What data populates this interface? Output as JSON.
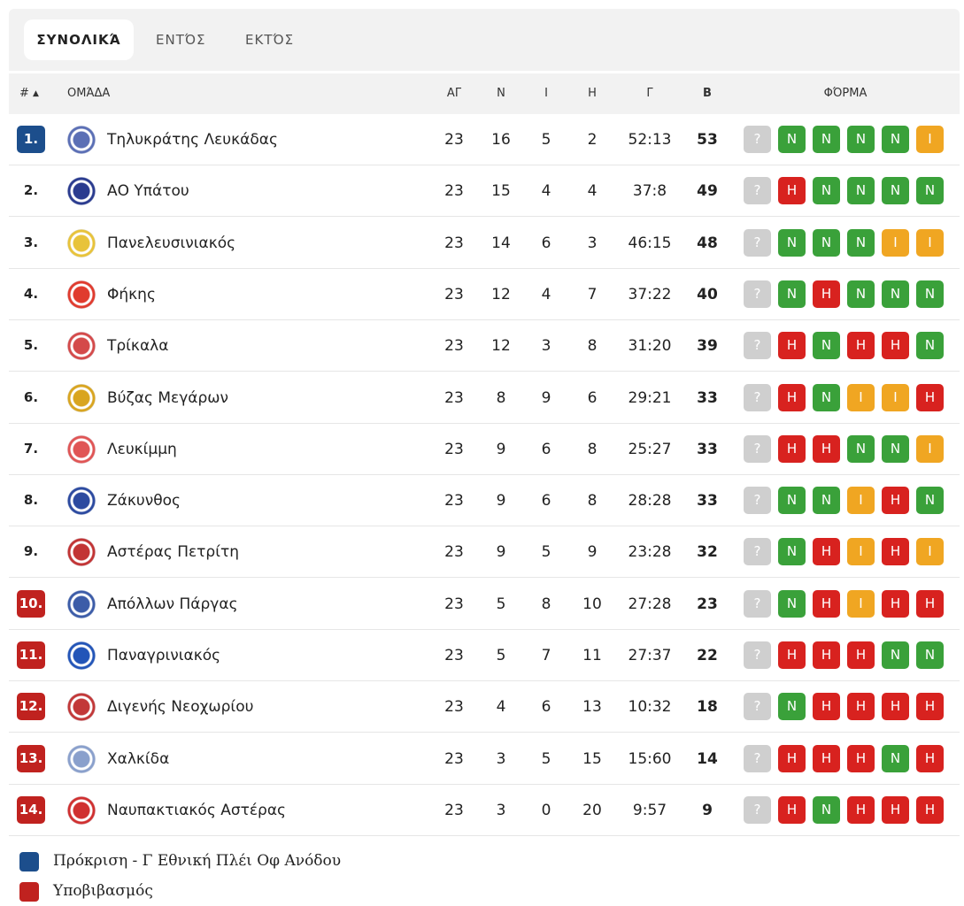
{
  "tabs": [
    {
      "label": "ΣΥΝΟΛΙΚΆ"
    },
    {
      "label": "ΕΝΤΌΣ"
    },
    {
      "label": "ΕΚΤΌΣ"
    }
  ],
  "header": {
    "rank": "#",
    "sort_arrow": "▲",
    "team": "ΟΜΆΔΑ",
    "played": "ΑΓ",
    "won": "Ν",
    "drawn": "Ι",
    "lost": "Η",
    "goals": "Γ",
    "points": "Β",
    "form": "ΦΌΡΜΑ"
  },
  "colors": {
    "promotion": "#1c4e8c",
    "relegation": "#c0221f",
    "win": "#3aa13a",
    "loss": "#d8221f",
    "draw": "#f0a622",
    "unknown": "#cfcfcf"
  },
  "rows": [
    {
      "rank": "1.",
      "zone": "promo",
      "team": "Τηλυκράτης Λευκάδας",
      "played": "23",
      "won": "16",
      "drawn": "5",
      "lost": "2",
      "goals": "52:13",
      "points": "53",
      "form": [
        "?",
        "N",
        "N",
        "N",
        "N",
        "I"
      ],
      "logo": "#5b6fb5"
    },
    {
      "rank": "2.",
      "zone": "",
      "team": "ΑΟ Υπάτου",
      "played": "23",
      "won": "15",
      "drawn": "4",
      "lost": "4",
      "goals": "37:8",
      "points": "49",
      "form": [
        "?",
        "H",
        "N",
        "N",
        "N",
        "N"
      ],
      "logo": "#2a3b8f"
    },
    {
      "rank": "3.",
      "zone": "",
      "team": "Πανελευσινιακός",
      "played": "23",
      "won": "14",
      "drawn": "6",
      "lost": "3",
      "goals": "46:15",
      "points": "48",
      "form": [
        "?",
        "N",
        "N",
        "N",
        "I",
        "I"
      ],
      "logo": "#e8c33a"
    },
    {
      "rank": "4.",
      "zone": "",
      "team": "Φήκης",
      "played": "23",
      "won": "12",
      "drawn": "4",
      "lost": "7",
      "goals": "37:22",
      "points": "40",
      "form": [
        "?",
        "N",
        "H",
        "N",
        "N",
        "N"
      ],
      "logo": "#e03b2e"
    },
    {
      "rank": "5.",
      "zone": "",
      "team": "Τρίκαλα",
      "played": "23",
      "won": "12",
      "drawn": "3",
      "lost": "8",
      "goals": "31:20",
      "points": "39",
      "form": [
        "?",
        "H",
        "N",
        "H",
        "H",
        "N"
      ],
      "logo": "#d44a4a"
    },
    {
      "rank": "6.",
      "zone": "",
      "team": "Βύζας Μεγάρων",
      "played": "23",
      "won": "8",
      "drawn": "9",
      "lost": "6",
      "goals": "29:21",
      "points": "33",
      "form": [
        "?",
        "H",
        "N",
        "I",
        "I",
        "H"
      ],
      "logo": "#d9a520"
    },
    {
      "rank": "7.",
      "zone": "",
      "team": "Λευκίμμη",
      "played": "23",
      "won": "9",
      "drawn": "6",
      "lost": "8",
      "goals": "25:27",
      "points": "33",
      "form": [
        "?",
        "H",
        "H",
        "N",
        "N",
        "I"
      ],
      "logo": "#e05555"
    },
    {
      "rank": "8.",
      "zone": "",
      "team": "Ζάκυνθος",
      "played": "23",
      "won": "9",
      "drawn": "6",
      "lost": "8",
      "goals": "28:28",
      "points": "33",
      "form": [
        "?",
        "N",
        "N",
        "I",
        "H",
        "N"
      ],
      "logo": "#2c4aa0"
    },
    {
      "rank": "9.",
      "zone": "",
      "team": "Αστέρας Πετρίτη",
      "played": "23",
      "won": "9",
      "drawn": "5",
      "lost": "9",
      "goals": "23:28",
      "points": "32",
      "form": [
        "?",
        "N",
        "H",
        "I",
        "H",
        "I"
      ],
      "logo": "#c23434"
    },
    {
      "rank": "10.",
      "zone": "releg",
      "team": "Απόλλων Πάργας",
      "played": "23",
      "won": "5",
      "drawn": "8",
      "lost": "10",
      "goals": "27:28",
      "points": "23",
      "form": [
        "?",
        "N",
        "H",
        "I",
        "H",
        "H"
      ],
      "logo": "#3c5ca8"
    },
    {
      "rank": "11.",
      "zone": "releg",
      "team": "Παναγρινιακός",
      "played": "23",
      "won": "5",
      "drawn": "7",
      "lost": "11",
      "goals": "27:37",
      "points": "22",
      "form": [
        "?",
        "H",
        "H",
        "H",
        "N",
        "N"
      ],
      "logo": "#2355b8"
    },
    {
      "rank": "12.",
      "zone": "releg",
      "team": "Διγενής Νεοχωρίου",
      "played": "23",
      "won": "4",
      "drawn": "6",
      "lost": "13",
      "goals": "10:32",
      "points": "18",
      "form": [
        "?",
        "N",
        "H",
        "H",
        "H",
        "H"
      ],
      "logo": "#c23838"
    },
    {
      "rank": "13.",
      "zone": "releg",
      "team": "Χαλκίδα",
      "played": "23",
      "won": "3",
      "drawn": "5",
      "lost": "15",
      "goals": "15:60",
      "points": "14",
      "form": [
        "?",
        "H",
        "H",
        "H",
        "N",
        "H"
      ],
      "logo": "#8aa0cc"
    },
    {
      "rank": "14.",
      "zone": "releg",
      "team": "Ναυπακτιακός Αστέρας",
      "played": "23",
      "won": "3",
      "drawn": "0",
      "lost": "20",
      "goals": "9:57",
      "points": "9",
      "form": [
        "?",
        "H",
        "N",
        "H",
        "H",
        "H"
      ],
      "logo": "#d03030"
    }
  ],
  "legend": [
    {
      "label": "Πρόκριση - Γ Εθνική Πλέι Οφ Ανόδου",
      "color": "#1c4e8c"
    },
    {
      "label": "Υποβιβασμός",
      "color": "#c0221f"
    }
  ]
}
